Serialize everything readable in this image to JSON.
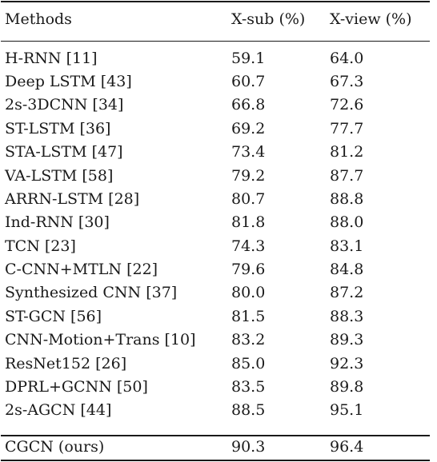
{
  "table": {
    "headers": [
      "Methods",
      "X-sub (%)",
      "X-view (%)"
    ],
    "rows": [
      {
        "method": "H-RNN [11]",
        "xsub": "59.1",
        "xview": "64.0"
      },
      {
        "method": "Deep LSTM [43]",
        "xsub": "60.7",
        "xview": "67.3"
      },
      {
        "method": "2s-3DCNN [34]",
        "xsub": "66.8",
        "xview": "72.6"
      },
      {
        "method": "ST-LSTM [36]",
        "xsub": "69.2",
        "xview": "77.7"
      },
      {
        "method": "STA-LSTM [47]",
        "xsub": "73.4",
        "xview": "81.2"
      },
      {
        "method": "VA-LSTM [58]",
        "xsub": "79.2",
        "xview": "87.7"
      },
      {
        "method": "ARRN-LSTM [28]",
        "xsub": "80.7",
        "xview": "88.8"
      },
      {
        "method": "Ind-RNN [30]",
        "xsub": "81.8",
        "xview": "88.0"
      },
      {
        "method": "TCN [23]",
        "xsub": "74.3",
        "xview": "83.1"
      },
      {
        "method": "C-CNN+MTLN [22]",
        "xsub": "79.6",
        "xview": "84.8"
      },
      {
        "method": "Synthesized CNN [37]",
        "xsub": "80.0",
        "xview": "87.2"
      },
      {
        "method": "ST-GCN [56]",
        "xsub": "81.5",
        "xview": "88.3"
      },
      {
        "method": "CNN-Motion+Trans [10]",
        "xsub": "83.2",
        "xview": "89.3"
      },
      {
        "method": "ResNet152 [26]",
        "xsub": "85.0",
        "xview": "92.3"
      },
      {
        "method": "DPRL+GCNN [50]",
        "xsub": "83.5",
        "xview": "89.8"
      },
      {
        "method": "2s-AGCN [44]",
        "xsub": "88.5",
        "xview": "95.1"
      }
    ],
    "ours": {
      "method": "CGCN (ours)",
      "xsub": "90.3",
      "xview": "96.4"
    }
  }
}
